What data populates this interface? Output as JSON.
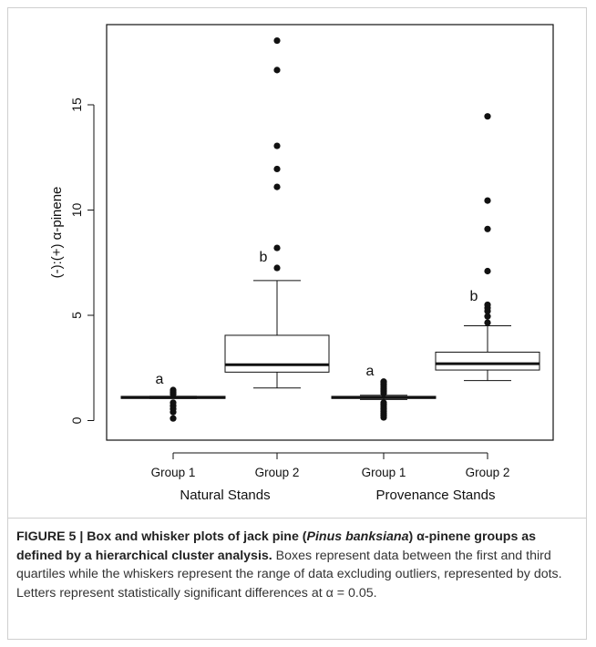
{
  "chart_data": {
    "type": "box",
    "ylabel": "(-):(+) α-pinene",
    "ylim": [
      -1,
      18.5
    ],
    "yticks": [
      0,
      5,
      10,
      15
    ],
    "categories": [
      "Group 1",
      "Group 2",
      "Group 1",
      "Group 2"
    ],
    "category_groups": [
      {
        "label": "Natural Stands",
        "members": [
          0,
          1
        ]
      },
      {
        "label": "Provenance Stands",
        "members": [
          2,
          3
        ]
      }
    ],
    "boxes": [
      {
        "q1": 1.05,
        "median": 1.1,
        "q3": 1.15,
        "whisker_low": 1.05,
        "whisker_high": 1.15,
        "outliers": [
          0.1,
          0.4,
          0.55,
          0.7,
          0.85,
          1.25,
          1.35,
          1.45
        ],
        "letter": "a"
      },
      {
        "q1": 2.3,
        "median": 2.65,
        "q3": 4.05,
        "whisker_low": 1.55,
        "whisker_high": 6.65,
        "outliers": [
          7.25,
          8.2,
          11.1,
          11.95,
          13.05,
          16.65,
          18.05
        ],
        "letter": "b"
      },
      {
        "q1": 1.05,
        "median": 1.1,
        "q3": 1.15,
        "whisker_low": 1.0,
        "whisker_high": 1.2,
        "outliers": [
          0.15,
          0.25,
          0.35,
          0.45,
          0.55,
          0.65,
          0.75,
          0.85,
          1.3,
          1.4,
          1.5,
          1.6,
          1.7,
          1.8,
          1.85
        ],
        "letter": "a"
      },
      {
        "q1": 2.4,
        "median": 2.7,
        "q3": 3.25,
        "whisker_low": 1.9,
        "whisker_high": 4.5,
        "outliers": [
          4.65,
          4.95,
          5.2,
          5.35,
          5.5,
          7.1,
          9.1,
          10.45,
          14.45
        ],
        "letter": "b"
      }
    ],
    "grid": false,
    "legend": "none"
  },
  "caption": {
    "fig_label": "FIGURE 5 | Box and whisker plots of jack pine (",
    "species": "Pinus banksiana",
    "bold_tail": ") α-pinene groups as defined by a hierarchical cluster analysis.",
    "body": " Boxes represent data between the first and third quartiles while the whiskers represent the range of data excluding outliers, represented by dots. Letters represent statistically significant differences at α = 0.05."
  },
  "colors": {
    "ink": "#111111",
    "caption_text": "#333333",
    "frame": "#cfcfcf"
  }
}
